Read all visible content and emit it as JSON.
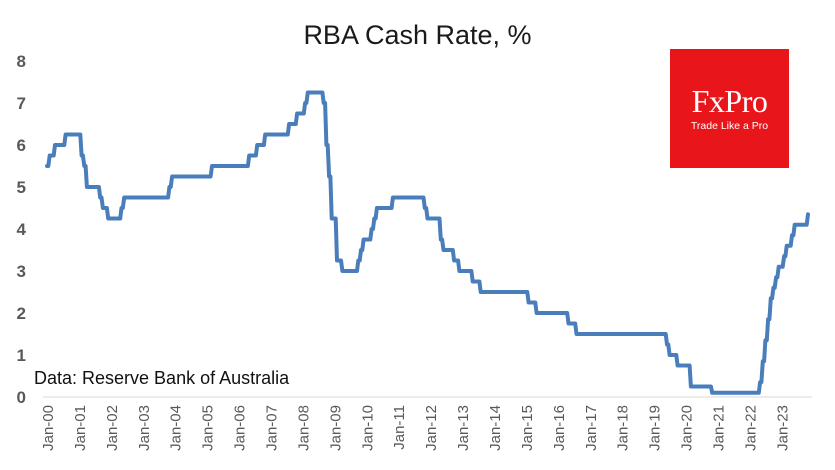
{
  "logo": {
    "name": "FxPro",
    "tagline": "Trade Like a Pro",
    "bg_color": "#e8161b"
  },
  "chart_data": {
    "type": "line",
    "title": "RBA Cash Rate, %",
    "annotation": "Data: Reserve Bank of Australia",
    "xlabel": "",
    "ylabel": "",
    "ylim": [
      0,
      8
    ],
    "yticks": [
      0,
      1,
      2,
      3,
      4,
      5,
      6,
      7,
      8
    ],
    "xticks": [
      "Jan-00",
      "Jan-01",
      "Jan-02",
      "Jan-03",
      "Jan-04",
      "Jan-05",
      "Jan-06",
      "Jan-07",
      "Jan-08",
      "Jan-09",
      "Jan-10",
      "Jan-11",
      "Jan-12",
      "Jan-13",
      "Jan-14",
      "Jan-15",
      "Jan-16",
      "Jan-17",
      "Jan-18",
      "Jan-19",
      "Jan-20",
      "Jan-21",
      "Jan-22",
      "Jan-23"
    ],
    "grid": false,
    "line_color": "#4a7ebb",
    "series": [
      {
        "x": [
          "2000-01",
          "2000-02",
          "2000-04",
          "2000-05",
          "2000-08",
          "2000-11",
          "2001-02",
          "2001-03",
          "2001-04",
          "2001-09",
          "2001-10",
          "2001-12",
          "2002-05",
          "2002-06",
          "2003-11",
          "2003-12",
          "2005-03",
          "2006-05",
          "2006-08",
          "2006-11",
          "2007-08",
          "2007-11",
          "2008-02",
          "2008-03",
          "2008-09",
          "2008-10",
          "2008-11",
          "2008-12",
          "2009-02",
          "2009-04",
          "2009-10",
          "2009-11",
          "2009-12",
          "2010-03",
          "2010-04",
          "2010-05",
          "2010-11",
          "2011-11",
          "2011-12",
          "2012-05",
          "2012-06",
          "2012-10",
          "2012-12",
          "2013-05",
          "2013-08",
          "2015-02",
          "2015-05",
          "2016-05",
          "2016-08",
          "2019-06",
          "2019-07",
          "2019-10",
          "2020-03",
          "2020-11",
          "2022-05",
          "2022-06",
          "2022-07",
          "2022-08",
          "2022-09",
          "2022-10",
          "2022-11",
          "2022-12",
          "2023-02",
          "2023-03",
          "2023-05",
          "2023-06",
          "2023-11"
        ],
        "values": [
          5.5,
          5.75,
          6.0,
          6.0,
          6.25,
          6.25,
          5.75,
          5.5,
          5.0,
          4.75,
          4.5,
          4.25,
          4.5,
          4.75,
          5.0,
          5.25,
          5.5,
          5.75,
          6.0,
          6.25,
          6.5,
          6.75,
          7.0,
          7.25,
          7.0,
          6.0,
          5.25,
          4.25,
          3.25,
          3.0,
          3.25,
          3.5,
          3.75,
          4.0,
          4.25,
          4.5,
          4.75,
          4.5,
          4.25,
          3.75,
          3.5,
          3.25,
          3.0,
          2.75,
          2.5,
          2.25,
          2.0,
          1.75,
          1.5,
          1.25,
          1.0,
          0.75,
          0.25,
          0.1,
          0.35,
          0.85,
          1.35,
          1.85,
          2.35,
          2.6,
          2.85,
          3.1,
          3.35,
          3.6,
          3.85,
          4.1,
          4.35
        ]
      }
    ]
  }
}
